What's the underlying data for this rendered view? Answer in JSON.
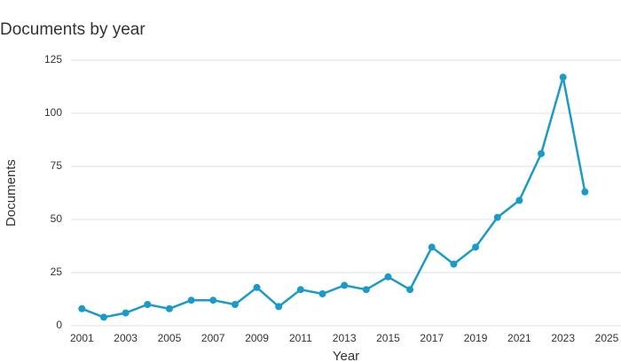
{
  "chart_data": {
    "type": "line",
    "title": "Documents by year",
    "x_label": "Year",
    "y_label": "Documents",
    "x": [
      2001,
      2002,
      2003,
      2004,
      2005,
      2006,
      2007,
      2008,
      2009,
      2010,
      2011,
      2012,
      2013,
      2014,
      2015,
      2016,
      2017,
      2018,
      2019,
      2020,
      2021,
      2022,
      2023,
      2024
    ],
    "series": [
      {
        "name": "Documents",
        "color": "#1a9bc7",
        "values": [
          8,
          4,
          6,
          10,
          8,
          12,
          12,
          10,
          18,
          9,
          17,
          15,
          19,
          17,
          23,
          17,
          37,
          29,
          37,
          51,
          59,
          81,
          117,
          63
        ]
      }
    ],
    "xlim": [
      2000.5,
      2025
    ],
    "xticks": [
      2001,
      2003,
      2005,
      2007,
      2009,
      2011,
      2013,
      2015,
      2017,
      2019,
      2021,
      2023,
      2025
    ],
    "ylim": [
      0,
      125
    ],
    "yticks": [
      0,
      25,
      50,
      75,
      100,
      125
    ],
    "grid": true
  }
}
